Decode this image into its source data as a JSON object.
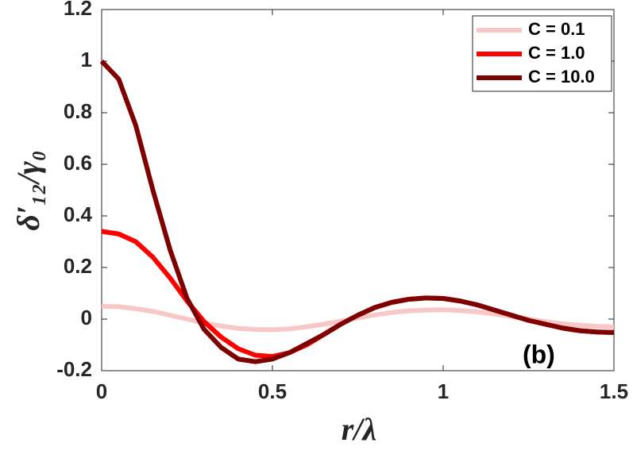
{
  "chart_data": {
    "type": "line",
    "x_label": "r/λ",
    "y_label": "δ′₁₂/γ₀",
    "annotation": "(b)",
    "x": [
      0,
      0.05,
      0.1,
      0.15,
      0.2,
      0.25,
      0.3,
      0.35,
      0.4,
      0.45,
      0.5,
      0.55,
      0.6,
      0.65,
      0.7,
      0.75,
      0.8,
      0.85,
      0.9,
      0.95,
      1,
      1.05,
      1.1,
      1.15,
      1.2,
      1.25,
      1.3,
      1.35,
      1.4,
      1.45,
      1.5
    ],
    "series": [
      {
        "name": "C = 0.1",
        "color": "#f8c8c8",
        "values": [
          0.05,
          0.048,
          0.04,
          0.03,
          0.015,
          0,
          -0.015,
          -0.027,
          -0.036,
          -0.04,
          -0.041,
          -0.038,
          -0.03,
          -0.02,
          -0.008,
          0.005,
          0.016,
          0.026,
          0.032,
          0.035,
          0.036,
          0.033,
          0.028,
          0.02,
          0.01,
          0,
          -0.01,
          -0.018,
          -0.024,
          -0.028,
          -0.03
        ]
      },
      {
        "name": "C = 1.0",
        "color": "#ff0000",
        "values": [
          0.34,
          0.33,
          0.3,
          0.24,
          0.16,
          0.07,
          -0.01,
          -0.07,
          -0.115,
          -0.14,
          -0.145,
          -0.13,
          -0.1,
          -0.06,
          -0.02,
          0.015,
          0.045,
          0.065,
          0.077,
          0.082,
          0.08,
          0.07,
          0.055,
          0.035,
          0.015,
          -0.005,
          -0.02,
          -0.035,
          -0.045,
          -0.05,
          -0.052
        ]
      },
      {
        "name": "C = 10.0",
        "color": "#7f0000",
        "values": [
          1,
          0.93,
          0.75,
          0.5,
          0.27,
          0.08,
          -0.04,
          -0.11,
          -0.155,
          -0.165,
          -0.155,
          -0.13,
          -0.095,
          -0.06,
          -0.02,
          0.015,
          0.045,
          0.065,
          0.077,
          0.082,
          0.08,
          0.07,
          0.055,
          0.035,
          0.015,
          -0.005,
          -0.02,
          -0.035,
          -0.045,
          -0.05,
          -0.052
        ]
      }
    ],
    "xlim": [
      0,
      1.5
    ],
    "xticks": [
      0,
      0.5,
      1,
      1.5
    ],
    "ylim": [
      -0.2,
      1.2
    ],
    "yticks": [
      -0.2,
      0,
      0.2,
      0.4,
      0.6,
      0.8,
      1,
      1.2
    ],
    "legend": "top-right"
  }
}
